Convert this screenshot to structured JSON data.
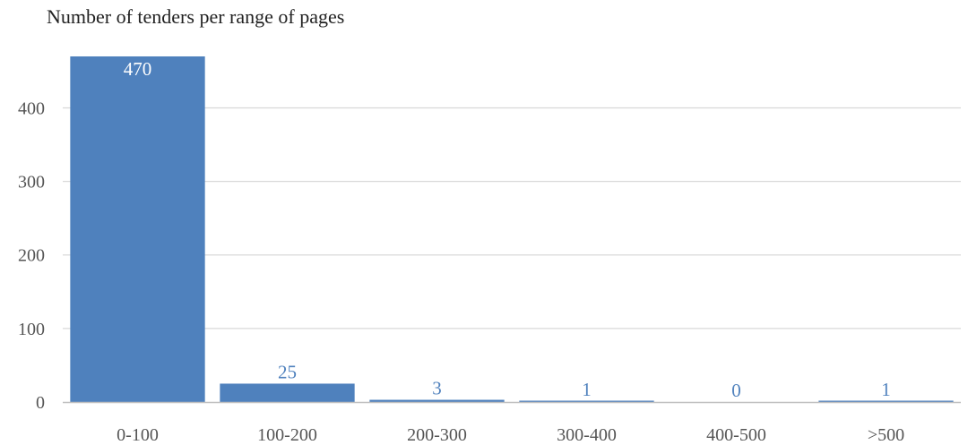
{
  "chart_data": {
    "type": "bar",
    "title": "Number of tenders per range of pages",
    "categories": [
      "0-100",
      "100-200",
      "200-300",
      "300-400",
      "400-500",
      ">500"
    ],
    "values": [
      470,
      25,
      3,
      1,
      0,
      1
    ],
    "data_labels": [
      "470",
      "25",
      "3",
      "1",
      "0",
      "1"
    ],
    "y_ticks": [
      "0",
      "100",
      "200",
      "300",
      "400"
    ],
    "xlabel": "",
    "ylabel": "",
    "ylim": [
      0,
      470
    ],
    "grid": "horizontal",
    "legend": "none",
    "colors": {
      "bar": "#4f81bd",
      "label_inside": "#ffffff",
      "label_outside": "#4f81bd",
      "grid": "#d9d9d9",
      "axis": "#bfbfbf"
    }
  }
}
